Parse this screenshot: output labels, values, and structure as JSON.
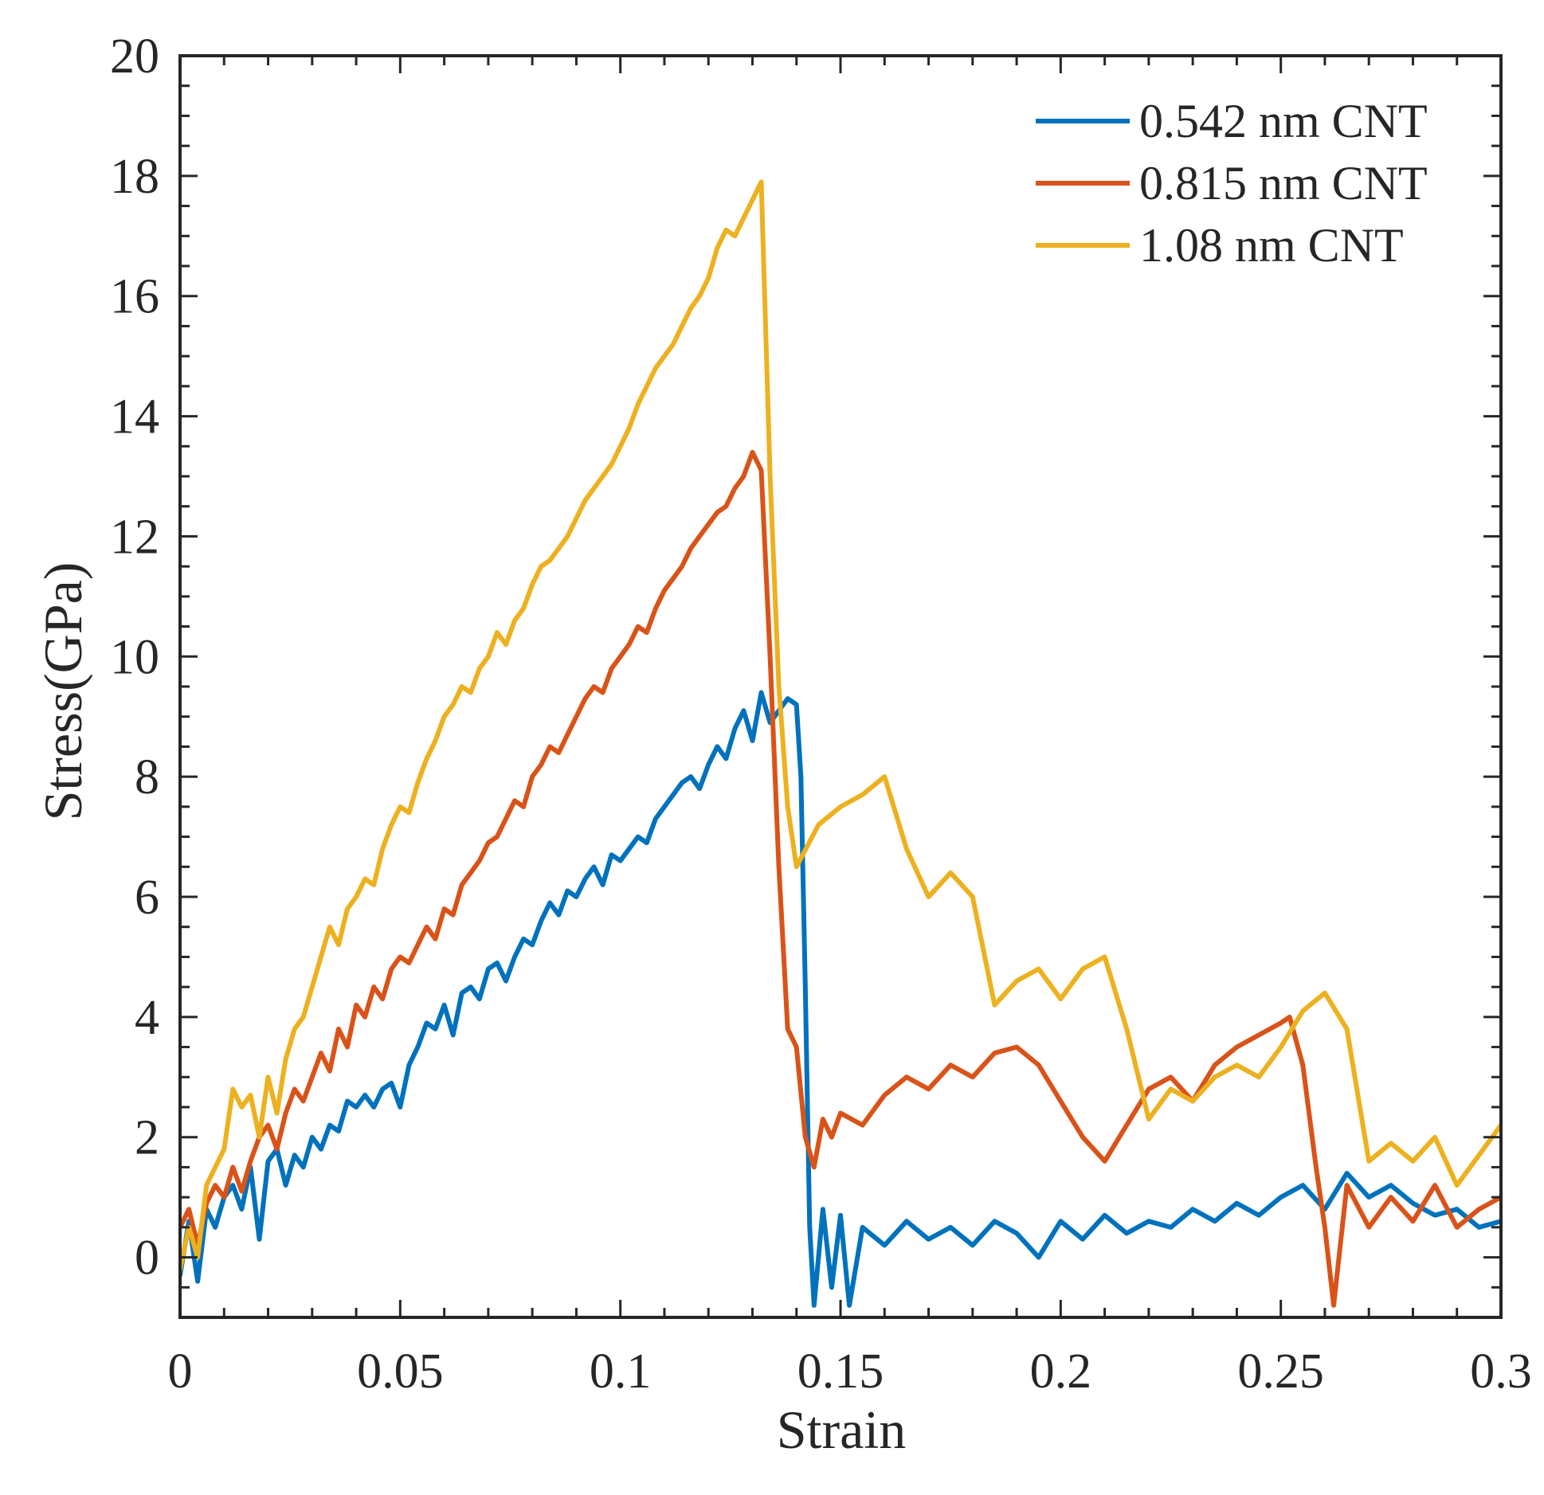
{
  "chart_data": {
    "type": "line",
    "title": "",
    "xlabel": "Strain",
    "ylabel": "Stress(GPa)",
    "xlim": [
      0,
      0.3
    ],
    "ylim": [
      -1,
      20
    ],
    "xticks": [
      0,
      0.05,
      0.1,
      0.15,
      0.2,
      0.25,
      0.3
    ],
    "xtick_labels": [
      "0",
      "0.05",
      "0.1",
      "0.15",
      "0.2",
      "0.25",
      "0.3"
    ],
    "yticks": [
      0,
      2,
      4,
      6,
      8,
      10,
      12,
      14,
      16,
      18,
      20
    ],
    "ytick_labels": [
      "0",
      "2",
      "4",
      "6",
      "8",
      "10",
      "12",
      "14",
      "16",
      "18",
      "20"
    ],
    "grid": false,
    "legend_position": "top-right",
    "series": [
      {
        "name": "0.542 nm CNT",
        "color": "#0072BD",
        "x": [
          0,
          0.002,
          0.004,
          0.006,
          0.008,
          0.01,
          0.012,
          0.014,
          0.016,
          0.018,
          0.02,
          0.022,
          0.024,
          0.026,
          0.028,
          0.03,
          0.032,
          0.034,
          0.036,
          0.038,
          0.04,
          0.042,
          0.044,
          0.046,
          0.048,
          0.05,
          0.052,
          0.054,
          0.056,
          0.058,
          0.06,
          0.062,
          0.064,
          0.066,
          0.068,
          0.07,
          0.072,
          0.074,
          0.076,
          0.078,
          0.08,
          0.082,
          0.084,
          0.086,
          0.088,
          0.09,
          0.092,
          0.094,
          0.096,
          0.098,
          0.1,
          0.102,
          0.104,
          0.106,
          0.108,
          0.11,
          0.112,
          0.114,
          0.116,
          0.118,
          0.12,
          0.122,
          0.124,
          0.126,
          0.128,
          0.13,
          0.132,
          0.134,
          0.136,
          0.138,
          0.14,
          0.141,
          0.142,
          0.143,
          0.144,
          0.146,
          0.148,
          0.15,
          0.152,
          0.155,
          0.16,
          0.165,
          0.17,
          0.175,
          0.18,
          0.185,
          0.19,
          0.195,
          0.2,
          0.205,
          0.21,
          0.215,
          0.22,
          0.225,
          0.23,
          0.235,
          0.24,
          0.245,
          0.25,
          0.255,
          0.26,
          0.265,
          0.27,
          0.275,
          0.28,
          0.285,
          0.29,
          0.295,
          0.3
        ],
        "values": [
          -0.3,
          0.6,
          -0.4,
          0.8,
          0.5,
          1.0,
          1.2,
          0.8,
          1.5,
          0.3,
          1.6,
          1.8,
          1.2,
          1.7,
          1.5,
          2.0,
          1.8,
          2.2,
          2.1,
          2.6,
          2.5,
          2.7,
          2.5,
          2.8,
          2.9,
          2.5,
          3.2,
          3.5,
          3.9,
          3.8,
          4.2,
          3.7,
          4.4,
          4.5,
          4.3,
          4.8,
          4.9,
          4.6,
          5.0,
          5.3,
          5.2,
          5.6,
          5.9,
          5.7,
          6.1,
          6.0,
          6.3,
          6.5,
          6.2,
          6.7,
          6.6,
          6.8,
          7.0,
          6.9,
          7.3,
          7.5,
          7.7,
          7.9,
          8.0,
          7.8,
          8.2,
          8.5,
          8.3,
          8.8,
          9.1,
          8.6,
          9.4,
          8.9,
          9.1,
          9.3,
          9.2,
          8.0,
          4.5,
          0.5,
          -0.8,
          0.8,
          -0.5,
          0.7,
          -0.8,
          0.5,
          0.2,
          0.6,
          0.3,
          0.5,
          0.2,
          0.6,
          0.4,
          0.0,
          0.6,
          0.3,
          0.7,
          0.4,
          0.6,
          0.5,
          0.8,
          0.6,
          0.9,
          0.7,
          1.0,
          1.2,
          0.8,
          1.4,
          1.0,
          1.2,
          0.9,
          0.7,
          0.8,
          0.5,
          0.6
        ]
      },
      {
        "name": "0.815 nm CNT",
        "color": "#D95319",
        "x": [
          0,
          0.002,
          0.004,
          0.006,
          0.008,
          0.01,
          0.012,
          0.014,
          0.016,
          0.018,
          0.02,
          0.022,
          0.024,
          0.026,
          0.028,
          0.03,
          0.032,
          0.034,
          0.036,
          0.038,
          0.04,
          0.042,
          0.044,
          0.046,
          0.048,
          0.05,
          0.052,
          0.054,
          0.056,
          0.058,
          0.06,
          0.062,
          0.064,
          0.066,
          0.068,
          0.07,
          0.072,
          0.074,
          0.076,
          0.078,
          0.08,
          0.082,
          0.084,
          0.086,
          0.088,
          0.09,
          0.092,
          0.094,
          0.096,
          0.098,
          0.1,
          0.102,
          0.104,
          0.106,
          0.108,
          0.11,
          0.112,
          0.114,
          0.116,
          0.118,
          0.12,
          0.122,
          0.124,
          0.126,
          0.128,
          0.13,
          0.132,
          0.134,
          0.136,
          0.138,
          0.14,
          0.142,
          0.144,
          0.146,
          0.148,
          0.15,
          0.155,
          0.16,
          0.165,
          0.17,
          0.175,
          0.18,
          0.185,
          0.19,
          0.195,
          0.2,
          0.205,
          0.21,
          0.215,
          0.22,
          0.225,
          0.23,
          0.235,
          0.24,
          0.245,
          0.25,
          0.252,
          0.255,
          0.258,
          0.26,
          0.262,
          0.265,
          0.27,
          0.275,
          0.28,
          0.285,
          0.29,
          0.295,
          0.3
        ],
        "values": [
          0.5,
          0.8,
          0.2,
          0.9,
          1.2,
          1.0,
          1.5,
          1.1,
          1.6,
          2.0,
          2.2,
          1.8,
          2.4,
          2.8,
          2.6,
          3.0,
          3.4,
          3.1,
          3.8,
          3.5,
          4.2,
          4.0,
          4.5,
          4.3,
          4.8,
          5.0,
          4.9,
          5.2,
          5.5,
          5.3,
          5.8,
          5.7,
          6.2,
          6.4,
          6.6,
          6.9,
          7.0,
          7.3,
          7.6,
          7.5,
          8.0,
          8.2,
          8.5,
          8.4,
          8.7,
          9.0,
          9.3,
          9.5,
          9.4,
          9.8,
          10.0,
          10.2,
          10.5,
          10.4,
          10.8,
          11.1,
          11.3,
          11.5,
          11.8,
          12.0,
          12.2,
          12.4,
          12.5,
          12.8,
          13.0,
          13.4,
          13.1,
          10.0,
          6.5,
          3.8,
          3.5,
          2.0,
          1.5,
          2.3,
          2.0,
          2.4,
          2.2,
          2.7,
          3.0,
          2.8,
          3.2,
          3.0,
          3.4,
          3.5,
          3.2,
          2.6,
          2.0,
          1.6,
          2.2,
          2.8,
          3.0,
          2.6,
          3.2,
          3.5,
          3.7,
          3.9,
          4.0,
          3.2,
          1.5,
          0.5,
          -0.8,
          1.2,
          0.5,
          1.0,
          0.6,
          1.2,
          0.5,
          0.8,
          1.0
        ]
      },
      {
        "name": "1.08 nm CNT",
        "color": "#EDB120",
        "x": [
          0,
          0.002,
          0.004,
          0.006,
          0.008,
          0.01,
          0.012,
          0.014,
          0.016,
          0.018,
          0.02,
          0.022,
          0.024,
          0.026,
          0.028,
          0.03,
          0.032,
          0.034,
          0.036,
          0.038,
          0.04,
          0.042,
          0.044,
          0.046,
          0.048,
          0.05,
          0.052,
          0.054,
          0.056,
          0.058,
          0.06,
          0.062,
          0.064,
          0.066,
          0.068,
          0.07,
          0.072,
          0.074,
          0.076,
          0.078,
          0.08,
          0.082,
          0.084,
          0.086,
          0.088,
          0.09,
          0.092,
          0.094,
          0.096,
          0.098,
          0.1,
          0.102,
          0.104,
          0.106,
          0.108,
          0.11,
          0.112,
          0.114,
          0.116,
          0.118,
          0.12,
          0.122,
          0.124,
          0.126,
          0.128,
          0.13,
          0.132,
          0.134,
          0.136,
          0.138,
          0.14,
          0.145,
          0.15,
          0.155,
          0.16,
          0.165,
          0.17,
          0.175,
          0.18,
          0.185,
          0.19,
          0.195,
          0.2,
          0.205,
          0.21,
          0.215,
          0.22,
          0.225,
          0.23,
          0.235,
          0.24,
          0.245,
          0.25,
          0.255,
          0.26,
          0.265,
          0.27,
          0.275,
          0.28,
          0.285,
          0.29,
          0.295,
          0.3
        ],
        "values": [
          -0.2,
          0.5,
          0.0,
          1.2,
          1.5,
          1.8,
          2.8,
          2.5,
          2.7,
          2.0,
          3.0,
          2.4,
          3.3,
          3.8,
          4.0,
          4.5,
          5.0,
          5.5,
          5.2,
          5.8,
          6.0,
          6.3,
          6.2,
          6.8,
          7.2,
          7.5,
          7.4,
          7.9,
          8.3,
          8.6,
          9.0,
          9.2,
          9.5,
          9.4,
          9.8,
          10.0,
          10.4,
          10.2,
          10.6,
          10.8,
          11.2,
          11.5,
          11.6,
          11.8,
          12.0,
          12.3,
          12.6,
          12.8,
          13.0,
          13.2,
          13.5,
          13.8,
          14.2,
          14.5,
          14.8,
          15.0,
          15.2,
          15.5,
          15.8,
          16.0,
          16.3,
          16.8,
          17.1,
          17.0,
          17.3,
          17.6,
          17.9,
          13.0,
          9.5,
          7.5,
          6.5,
          7.2,
          7.5,
          7.7,
          8.0,
          6.8,
          6.0,
          6.4,
          6.0,
          4.2,
          4.6,
          4.8,
          4.3,
          4.8,
          5.0,
          3.8,
          2.3,
          2.8,
          2.6,
          3.0,
          3.2,
          3.0,
          3.5,
          4.1,
          4.4,
          3.8,
          1.6,
          1.9,
          1.6,
          2.0,
          1.2,
          1.7,
          2.2
        ]
      }
    ]
  }
}
